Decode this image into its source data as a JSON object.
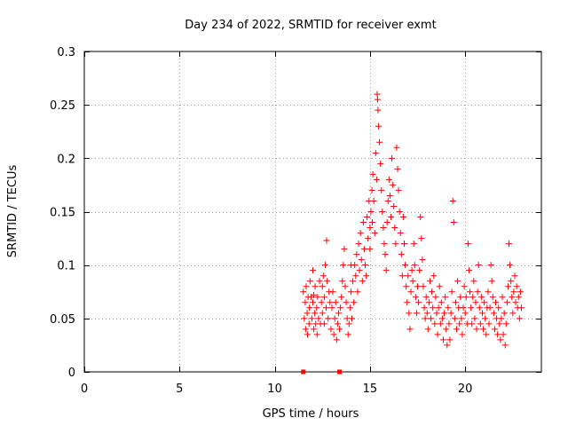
{
  "chart_data": {
    "type": "scatter",
    "title": "Day 234 of 2022, SRMTID for receiver exmt",
    "xlabel": "GPS time / hours",
    "ylabel": "SRMTID / TECUs",
    "xlim": [
      0,
      24
    ],
    "ylim": [
      0,
      0.3
    ],
    "xticks": [
      0,
      5,
      10,
      15,
      20
    ],
    "xtick_labels": [
      "0",
      "5",
      "10",
      "15",
      "20"
    ],
    "yticks": [
      0,
      0.05,
      0.1,
      0.15,
      0.2,
      0.25,
      0.3
    ],
    "ytick_labels": [
      "0",
      "0.05",
      "0.1",
      "0.15",
      "0.2",
      "0.25",
      "0.3"
    ],
    "grid": true,
    "marker": "+",
    "color": "#ff0000",
    "series": [
      {
        "name": "SRMTID",
        "points": [
          [
            11.5,
            0.075
          ],
          [
            11.55,
            0.05
          ],
          [
            11.6,
            0.065
          ],
          [
            11.62,
            0.04
          ],
          [
            11.65,
            0.08
          ],
          [
            11.7,
            0.055
          ],
          [
            11.72,
            0.035
          ],
          [
            11.75,
            0.07
          ],
          [
            11.8,
            0.045
          ],
          [
            11.82,
            0.06
          ],
          [
            11.85,
            0.085
          ],
          [
            11.9,
            0.07
          ],
          [
            11.95,
            0.05
          ],
          [
            12.0,
            0.065
          ],
          [
            12.0,
            0.095
          ],
          [
            12.05,
            0.04
          ],
          [
            12.05,
            0.072
          ],
          [
            12.1,
            0.055
          ],
          [
            12.12,
            0.08
          ],
          [
            12.15,
            0.045
          ],
          [
            12.2,
            0.06
          ],
          [
            12.22,
            0.035
          ],
          [
            12.25,
            0.07
          ],
          [
            12.3,
            0.05
          ],
          [
            12.35,
            0.085
          ],
          [
            12.4,
            0.045
          ],
          [
            12.45,
            0.065
          ],
          [
            12.5,
            0.08
          ],
          [
            12.5,
            0.055
          ],
          [
            12.55,
            0.09
          ],
          [
            12.6,
            0.07
          ],
          [
            12.6,
            0.045
          ],
          [
            12.65,
            0.1
          ],
          [
            12.7,
            0.06
          ],
          [
            12.72,
            0.123
          ],
          [
            12.75,
            0.085
          ],
          [
            12.8,
            0.05
          ],
          [
            12.85,
            0.075
          ],
          [
            12.9,
            0.065
          ],
          [
            12.95,
            0.04
          ],
          [
            13.0,
            0.06
          ],
          [
            13.05,
            0.075
          ],
          [
            13.1,
            0.035
          ],
          [
            13.15,
            0.05
          ],
          [
            13.2,
            0.065
          ],
          [
            13.25,
            0.03
          ],
          [
            13.3,
            0.045
          ],
          [
            13.35,
            0.055
          ],
          [
            13.4,
            0.04
          ],
          [
            13.45,
            0.06
          ],
          [
            13.5,
            0.07
          ],
          [
            13.55,
            0.085
          ],
          [
            13.6,
            0.1
          ],
          [
            13.65,
            0.115
          ],
          [
            13.7,
            0.08
          ],
          [
            13.75,
            0.065
          ],
          [
            13.8,
            0.05
          ],
          [
            13.85,
            0.035
          ],
          [
            13.9,
            0.045
          ],
          [
            13.95,
            0.06
          ],
          [
            14.0,
            0.075
          ],
          [
            14.0,
            0.1
          ],
          [
            14.05,
            0.05
          ],
          [
            14.1,
            0.085
          ],
          [
            14.15,
            0.065
          ],
          [
            14.2,
            0.1
          ],
          [
            14.25,
            0.09
          ],
          [
            14.3,
            0.11
          ],
          [
            14.35,
            0.075
          ],
          [
            14.4,
            0.12
          ],
          [
            14.45,
            0.095
          ],
          [
            14.5,
            0.13
          ],
          [
            14.55,
            0.105
          ],
          [
            14.6,
            0.085
          ],
          [
            14.65,
            0.14
          ],
          [
            14.7,
            0.115
          ],
          [
            14.75,
            0.1
          ],
          [
            14.8,
            0.09
          ],
          [
            14.85,
            0.145
          ],
          [
            14.9,
            0.125
          ],
          [
            14.95,
            0.16
          ],
          [
            15.0,
            0.135
          ],
          [
            15.0,
            0.115
          ],
          [
            15.05,
            0.15
          ],
          [
            15.1,
            0.17
          ],
          [
            15.12,
            0.14
          ],
          [
            15.15,
            0.185
          ],
          [
            15.2,
            0.16
          ],
          [
            15.25,
            0.13
          ],
          [
            15.3,
            0.205
          ],
          [
            15.35,
            0.18
          ],
          [
            15.38,
            0.26
          ],
          [
            15.4,
            0.255
          ],
          [
            15.42,
            0.245
          ],
          [
            15.45,
            0.23
          ],
          [
            15.5,
            0.215
          ],
          [
            15.55,
            0.195
          ],
          [
            15.6,
            0.17
          ],
          [
            15.65,
            0.15
          ],
          [
            15.7,
            0.135
          ],
          [
            15.75,
            0.12
          ],
          [
            15.8,
            0.11
          ],
          [
            15.85,
            0.095
          ],
          [
            15.9,
            0.14
          ],
          [
            15.95,
            0.16
          ],
          [
            16.0,
            0.18
          ],
          [
            16.05,
            0.165
          ],
          [
            16.1,
            0.145
          ],
          [
            16.15,
            0.2
          ],
          [
            16.2,
            0.175
          ],
          [
            16.25,
            0.155
          ],
          [
            16.3,
            0.135
          ],
          [
            16.35,
            0.12
          ],
          [
            16.4,
            0.21
          ],
          [
            16.45,
            0.19
          ],
          [
            16.5,
            0.17
          ],
          [
            16.55,
            0.15
          ],
          [
            16.6,
            0.13
          ],
          [
            16.65,
            0.11
          ],
          [
            16.7,
            0.09
          ],
          [
            16.75,
            0.145
          ],
          [
            16.8,
            0.12
          ],
          [
            16.85,
            0.1
          ],
          [
            16.9,
            0.08
          ],
          [
            16.95,
            0.065
          ],
          [
            17.0,
            0.09
          ],
          [
            17.05,
            0.055
          ],
          [
            17.1,
            0.04
          ],
          [
            17.15,
            0.075
          ],
          [
            17.2,
            0.095
          ],
          [
            17.25,
            0.085
          ],
          [
            17.3,
            0.12
          ],
          [
            17.35,
            0.1
          ],
          [
            17.4,
            0.07
          ],
          [
            17.45,
            0.055
          ],
          [
            17.5,
            0.08
          ],
          [
            17.55,
            0.065
          ],
          [
            17.6,
            0.095
          ],
          [
            17.65,
            0.145
          ],
          [
            17.7,
            0.125
          ],
          [
            17.75,
            0.105
          ],
          [
            17.8,
            0.08
          ],
          [
            17.85,
            0.06
          ],
          [
            17.9,
            0.05
          ],
          [
            17.95,
            0.07
          ],
          [
            18.0,
            0.055
          ],
          [
            18.05,
            0.04
          ],
          [
            18.1,
            0.065
          ],
          [
            18.15,
            0.085
          ],
          [
            18.2,
            0.05
          ],
          [
            18.25,
            0.075
          ],
          [
            18.3,
            0.06
          ],
          [
            18.35,
            0.09
          ],
          [
            18.4,
            0.045
          ],
          [
            18.45,
            0.07
          ],
          [
            18.5,
            0.055
          ],
          [
            18.55,
            0.035
          ],
          [
            18.6,
            0.06
          ],
          [
            18.65,
            0.08
          ],
          [
            18.7,
            0.045
          ],
          [
            18.75,
            0.065
          ],
          [
            18.8,
            0.05
          ],
          [
            18.85,
            0.03
          ],
          [
            18.9,
            0.055
          ],
          [
            18.95,
            0.07
          ],
          [
            19.0,
            0.04
          ],
          [
            19.05,
            0.025
          ],
          [
            19.1,
            0.06
          ],
          [
            19.15,
            0.045
          ],
          [
            19.2,
            0.03
          ],
          [
            19.25,
            0.055
          ],
          [
            19.3,
            0.075
          ],
          [
            19.35,
            0.16
          ],
          [
            19.4,
            0.14
          ],
          [
            19.45,
            0.05
          ],
          [
            19.5,
            0.065
          ],
          [
            19.55,
            0.04
          ],
          [
            19.6,
            0.085
          ],
          [
            19.65,
            0.06
          ],
          [
            19.7,
            0.045
          ],
          [
            19.75,
            0.07
          ],
          [
            19.8,
            0.05
          ],
          [
            19.85,
            0.035
          ],
          [
            19.9,
            0.06
          ],
          [
            19.95,
            0.08
          ],
          [
            20.0,
            0.055
          ],
          [
            20.05,
            0.07
          ],
          [
            20.1,
            0.045
          ],
          [
            20.15,
            0.12
          ],
          [
            20.2,
            0.095
          ],
          [
            20.25,
            0.075
          ],
          [
            20.3,
            0.06
          ],
          [
            20.35,
            0.045
          ],
          [
            20.4,
            0.07
          ],
          [
            20.45,
            0.085
          ],
          [
            20.5,
            0.05
          ],
          [
            20.55,
            0.065
          ],
          [
            20.6,
            0.04
          ],
          [
            20.65,
            0.075
          ],
          [
            20.7,
            0.1
          ],
          [
            20.75,
            0.06
          ],
          [
            20.8,
            0.045
          ],
          [
            20.85,
            0.07
          ],
          [
            20.9,
            0.055
          ],
          [
            20.95,
            0.04
          ],
          [
            21.0,
            0.065
          ],
          [
            21.05,
            0.05
          ],
          [
            21.1,
            0.035
          ],
          [
            21.15,
            0.06
          ],
          [
            21.2,
            0.075
          ],
          [
            21.25,
            0.045
          ],
          [
            21.3,
            0.06
          ],
          [
            21.35,
            0.1
          ],
          [
            21.4,
            0.085
          ],
          [
            21.45,
            0.07
          ],
          [
            21.5,
            0.055
          ],
          [
            21.55,
            0.04
          ],
          [
            21.6,
            0.065
          ],
          [
            21.65,
            0.05
          ],
          [
            21.7,
            0.035
          ],
          [
            21.75,
            0.06
          ],
          [
            21.8,
            0.045
          ],
          [
            21.85,
            0.03
          ],
          [
            21.9,
            0.05
          ],
          [
            21.95,
            0.07
          ],
          [
            22.0,
            0.035
          ],
          [
            22.05,
            0.055
          ],
          [
            22.1,
            0.025
          ],
          [
            22.15,
            0.045
          ],
          [
            22.2,
            0.065
          ],
          [
            22.25,
            0.08
          ],
          [
            22.3,
            0.12
          ],
          [
            22.35,
            0.1
          ],
          [
            22.4,
            0.085
          ],
          [
            22.45,
            0.07
          ],
          [
            22.5,
            0.055
          ],
          [
            22.55,
            0.075
          ],
          [
            22.6,
            0.09
          ],
          [
            22.65,
            0.065
          ],
          [
            22.7,
            0.08
          ],
          [
            22.75,
            0.06
          ],
          [
            22.8,
            0.07
          ],
          [
            22.85,
            0.05
          ],
          [
            22.9,
            0.075
          ],
          [
            22.95,
            0.06
          ]
        ]
      }
    ],
    "baseline_points": [
      [
        11.5,
        0.0
      ],
      [
        13.4,
        0.0
      ]
    ]
  }
}
